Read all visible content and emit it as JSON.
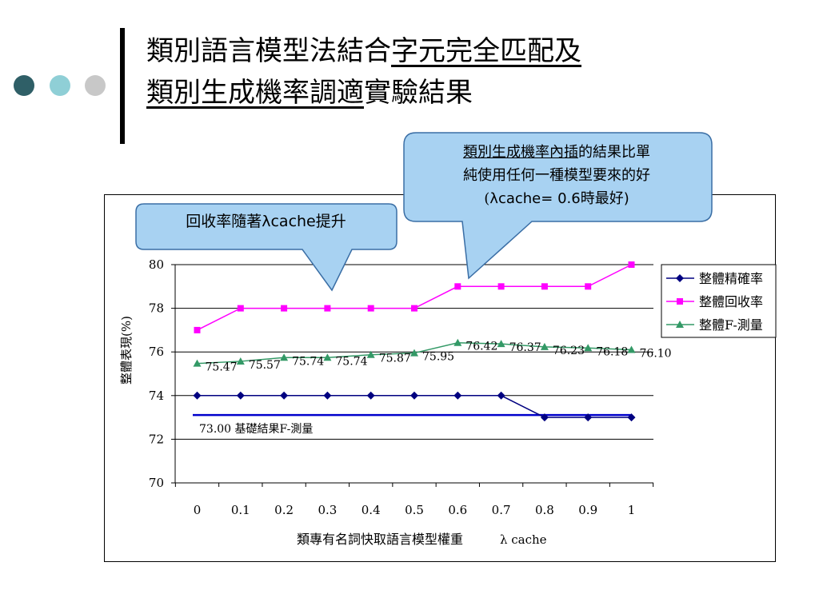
{
  "slide": {
    "title_line1_part1": "類別語言模型法結合",
    "title_line1_part2": "字元完全匹配及",
    "title_line2_part1": "類別生成機率調適",
    "title_line2_part2": "實驗結果"
  },
  "callouts": {
    "recall": {
      "text_before": "回收率隨著",
      "lambda": "λ",
      "text_after": "cache提升"
    },
    "interpolation": {
      "line1_underlined": "類別生成機率內插",
      "line1_rest": "的結果比單",
      "line2": "純使用任何一種模型要來的好",
      "line3_open": "(",
      "line3_lambda": "λ",
      "line3_rest": "cache= 0.6時最好)"
    }
  },
  "colors": {
    "precision": "#000080",
    "recall": "#ff00ff",
    "f_measure": "#339966",
    "baseline": "#0000cc",
    "callout_fill": "#a8d2f2",
    "callout_stroke": "#3a6ea5",
    "dot_dark": "#2f5f67",
    "dot_light": "#8fcfd6",
    "dot_grey": "#c8c8c8"
  },
  "chart_data": {
    "type": "line",
    "x": [
      0,
      0.1,
      0.2,
      0.3,
      0.4,
      0.5,
      0.6,
      0.7,
      0.8,
      0.9,
      1
    ],
    "x_tick_labels": [
      "0",
      "0.1",
      "0.2",
      "0.3",
      "0.4",
      "0.5",
      "0.6",
      "0.7",
      "0.8",
      "0.9",
      "1"
    ],
    "xlabel": "類專有名詞快取語言模型權重",
    "xlabel_lambda": "λ cache",
    "ylabel": "整體表現(%)",
    "ylim": [
      70,
      80
    ],
    "yticks": [
      70,
      72,
      74,
      76,
      78,
      80
    ],
    "grid": "horizontal",
    "legend_position": "right",
    "series": [
      {
        "name": "整體精確率",
        "color": "#000080",
        "marker": "diamond",
        "values": [
          74,
          74,
          74,
          74,
          74,
          74,
          74,
          74,
          73,
          73,
          73
        ]
      },
      {
        "name": "整體回收率",
        "color": "#ff00ff",
        "marker": "square",
        "values": [
          77,
          78,
          78,
          78,
          78,
          78,
          79,
          79,
          79,
          79,
          80
        ]
      },
      {
        "name": "整體F-測量",
        "color": "#339966",
        "marker": "triangle",
        "values": [
          75.47,
          75.57,
          75.74,
          75.74,
          75.87,
          75.95,
          76.42,
          76.37,
          76.23,
          76.18,
          76.1
        ],
        "data_labels": [
          "75.47",
          "75.57",
          "75.74",
          "75.74",
          "75.87",
          "75.95",
          "76.42",
          "76.37",
          "76.23",
          "76.18",
          "76.10"
        ]
      }
    ],
    "baseline": {
      "value": 73.0,
      "label": "73.00 基礎結果F-測量",
      "color": "#0000cc"
    }
  }
}
